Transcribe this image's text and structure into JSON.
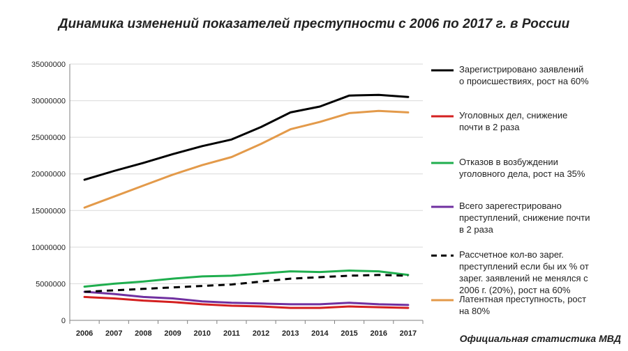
{
  "chart_data": {
    "type": "line",
    "title": "Динамика изменений показателей преступности с 2006 по 2017 г. в России",
    "source": "Официальная статистика МВД",
    "xlabel": "",
    "ylabel": "",
    "x": [
      "2006",
      "2007",
      "2008",
      "2009",
      "2010",
      "2011",
      "2012",
      "2013",
      "2014",
      "2015",
      "2016",
      "2017"
    ],
    "ylim": [
      0,
      35000000
    ],
    "yticks": [
      0,
      5000000,
      10000000,
      15000000,
      20000000,
      25000000,
      30000000,
      35000000
    ],
    "ytick_labels": [
      "0",
      "5000000",
      "10000000",
      "15000000",
      "20000000",
      "25000000",
      "30000000",
      "35000000"
    ],
    "grid": "horizontal",
    "legend_position": "right",
    "series": [
      {
        "name": "registered",
        "legend": [
          "Зарегистрировано заявлений",
          "о происшествиях, рост на 60%"
        ],
        "color": "#000000",
        "dashed": false,
        "values": [
          19200000,
          20400000,
          21500000,
          22700000,
          23800000,
          24700000,
          26400000,
          28400000,
          29200000,
          30700000,
          30800000,
          30500000
        ]
      },
      {
        "name": "criminal_cases",
        "legend": [
          "Уголовных дел, снижение",
          "почти в 2 раза"
        ],
        "color": "#d42020",
        "dashed": false,
        "values": [
          3200000,
          3000000,
          2700000,
          2500000,
          2200000,
          2000000,
          1900000,
          1700000,
          1700000,
          1900000,
          1800000,
          1700000
        ]
      },
      {
        "name": "refusals",
        "legend": [
          "Отказов в возбуждении",
          "уголовного дела, рост на 35%"
        ],
        "color": "#1fae4e",
        "dashed": false,
        "values": [
          4600000,
          5000000,
          5300000,
          5700000,
          6000000,
          6100000,
          6400000,
          6700000,
          6600000,
          6800000,
          6700000,
          6200000
        ]
      },
      {
        "name": "total_crimes",
        "legend": [
          "Всего зарегестрировано",
          "преступлений, снижение почти",
          "в 2 раза"
        ],
        "color": "#7030a0",
        "dashed": false,
        "values": [
          3900000,
          3600000,
          3200000,
          3000000,
          2600000,
          2400000,
          2300000,
          2200000,
          2200000,
          2400000,
          2200000,
          2100000
        ]
      },
      {
        "name": "estimated",
        "legend": [
          "Рассчетное кол-во зарег.",
          "преступлений если бы их % от",
          "зарег. заявлений не менялся с",
          "2006 г. (20%), рост на 60%"
        ],
        "color": "#000000",
        "dashed": true,
        "values": [
          3900000,
          4100000,
          4300000,
          4500000,
          4700000,
          4900000,
          5300000,
          5700000,
          5900000,
          6100000,
          6200000,
          6100000
        ]
      },
      {
        "name": "latent",
        "legend": [
          "Латентная преступность, рост",
          "на 80%"
        ],
        "color": "#e39a4a",
        "dashed": false,
        "values": [
          15400000,
          16900000,
          18400000,
          19900000,
          21200000,
          22300000,
          24100000,
          26100000,
          27100000,
          28300000,
          28600000,
          28400000
        ]
      }
    ]
  }
}
